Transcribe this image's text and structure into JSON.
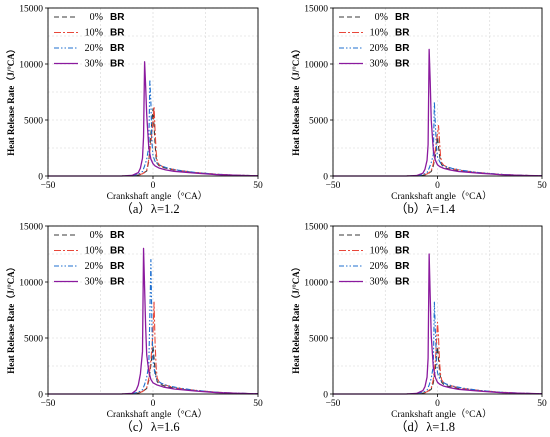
{
  "chart_data": [
    {
      "type": "line",
      "caption": "（a）λ=1.2",
      "xlabel": "Crankshaft angle（°CA）",
      "ylabel": "Heat Release Rate（J/°CA）",
      "xlim": [
        -50,
        50
      ],
      "ylim": [
        0,
        15000
      ],
      "xticks": [
        "−50",
        "0",
        "50"
      ],
      "yticks": [
        "0",
        "5000",
        "10000",
        "15000"
      ],
      "grid": true,
      "legend_position": "top-left",
      "series": [
        {
          "name": "0%",
          "name_suffix": "BR",
          "color": "#3a3a3a",
          "dash": "dash",
          "x": [
            -50,
            -15,
            -10,
            -7,
            -5,
            -3,
            -2,
            -1,
            0,
            0.5,
            1,
            1.5,
            2,
            3,
            5,
            8,
            12,
            20,
            30,
            40,
            50
          ],
          "y": [
            0,
            0,
            20,
            80,
            180,
            450,
            1300,
            3800,
            6000,
            4500,
            2800,
            1600,
            1100,
            900,
            750,
            600,
            480,
            300,
            150,
            60,
            20
          ]
        },
        {
          "name": "10%",
          "name_suffix": "BR",
          "color": "#e8473a",
          "dash": "dashdot",
          "x": [
            -50,
            -15,
            -10,
            -7,
            -5,
            -3,
            -2,
            -1,
            0,
            0.5,
            1,
            1.5,
            2,
            3,
            5,
            8,
            12,
            20,
            30,
            40,
            50
          ],
          "y": [
            0,
            0,
            30,
            100,
            200,
            500,
            1500,
            3000,
            4800,
            6200,
            4000,
            2200,
            1300,
            1000,
            800,
            650,
            500,
            320,
            160,
            70,
            20
          ]
        },
        {
          "name": "20%",
          "name_suffix": "BR",
          "color": "#1f6fcf",
          "dash": "dashdotdot",
          "x": [
            -50,
            -15,
            -10,
            -7,
            -5,
            -4,
            -3,
            -2,
            -1.5,
            -1,
            -0.5,
            0,
            1,
            2,
            4,
            7,
            12,
            20,
            30,
            40,
            50
          ],
          "y": [
            0,
            0,
            40,
            150,
            400,
            900,
            1500,
            2600,
            8600,
            6500,
            3000,
            1800,
            1300,
            1100,
            900,
            700,
            520,
            320,
            160,
            70,
            20
          ]
        },
        {
          "name": "30%",
          "name_suffix": "BR",
          "color": "#8b1a9e",
          "dash": "solid",
          "x": [
            -50,
            -15,
            -10,
            -7,
            -6,
            -5,
            -4.5,
            -4,
            -3.5,
            -3,
            -2,
            -1,
            0,
            1,
            3,
            6,
            10,
            20,
            30,
            40,
            50
          ],
          "y": [
            0,
            0,
            50,
            300,
            700,
            1600,
            3500,
            10200,
            8000,
            5500,
            2500,
            1500,
            1100,
            900,
            700,
            550,
            420,
            260,
            130,
            60,
            20
          ]
        }
      ]
    },
    {
      "type": "line",
      "caption": "（b）λ=1.4",
      "xlabel": "Crankshaft angle（°CA）",
      "ylabel": "Heat Release Rate（J/°CA）",
      "xlim": [
        -50,
        50
      ],
      "ylim": [
        0,
        15000
      ],
      "xticks": [
        "−50",
        "0",
        "50"
      ],
      "yticks": [
        "0",
        "5000",
        "10000",
        "15000"
      ],
      "grid": true,
      "legend_position": "top-left",
      "series": [
        {
          "name": "0%",
          "name_suffix": "BR",
          "color": "#3a3a3a",
          "dash": "dash",
          "x": [
            -50,
            -15,
            -10,
            -7,
            -5,
            -3,
            -2,
            -1,
            0,
            0.5,
            1,
            1.5,
            2,
            3,
            5,
            8,
            12,
            20,
            30,
            40,
            50
          ],
          "y": [
            0,
            0,
            20,
            60,
            150,
            400,
            900,
            1800,
            3500,
            2600,
            1800,
            1300,
            1000,
            800,
            650,
            520,
            420,
            280,
            140,
            60,
            20
          ]
        },
        {
          "name": "10%",
          "name_suffix": "BR",
          "color": "#e8473a",
          "dash": "dashdot",
          "x": [
            -50,
            -15,
            -10,
            -7,
            -5,
            -3,
            -2,
            -1,
            0,
            0.5,
            1,
            1.5,
            2,
            3,
            5,
            8,
            12,
            20,
            30,
            40,
            50
          ],
          "y": [
            0,
            0,
            25,
            90,
            180,
            450,
            1100,
            2400,
            3800,
            4500,
            3000,
            1700,
            1200,
            950,
            780,
            620,
            480,
            300,
            150,
            60,
            20
          ]
        },
        {
          "name": "20%",
          "name_suffix": "BR",
          "color": "#1f6fcf",
          "dash": "dashdotdot",
          "x": [
            -50,
            -15,
            -10,
            -7,
            -5,
            -4,
            -3,
            -2,
            -1.5,
            -1,
            -0.5,
            0,
            1,
            2,
            4,
            7,
            12,
            20,
            30,
            40,
            50
          ],
          "y": [
            0,
            0,
            30,
            120,
            300,
            700,
            1200,
            1900,
            6600,
            4500,
            2600,
            1700,
            1300,
            1000,
            850,
            680,
            500,
            300,
            150,
            60,
            20
          ]
        },
        {
          "name": "30%",
          "name_suffix": "BR",
          "color": "#8b1a9e",
          "dash": "solid",
          "x": [
            -50,
            -15,
            -10,
            -7,
            -6,
            -5,
            -4.5,
            -4,
            -3.5,
            -3,
            -2,
            -1,
            0,
            1,
            3,
            6,
            10,
            20,
            30,
            40,
            50
          ],
          "y": [
            0,
            0,
            40,
            250,
            600,
            1400,
            2800,
            11300,
            8500,
            5000,
            2300,
            1400,
            1000,
            850,
            680,
            540,
            400,
            250,
            120,
            50,
            20
          ]
        }
      ]
    },
    {
      "type": "line",
      "caption": "（c）λ=1.6",
      "xlabel": "Crankshaft angle（°CA）",
      "ylabel": "Heat Release Rate（J/°CA）",
      "xlim": [
        -50,
        50
      ],
      "ylim": [
        0,
        15000
      ],
      "xticks": [
        "−50",
        "0",
        "50"
      ],
      "yticks": [
        "0",
        "5000",
        "10000",
        "15000"
      ],
      "grid": true,
      "legend_position": "top-left",
      "series": [
        {
          "name": "0%",
          "name_suffix": "BR",
          "color": "#3a3a3a",
          "dash": "dash",
          "x": [
            -50,
            -15,
            -10,
            -7,
            -5,
            -3,
            -2,
            -1,
            0,
            0.5,
            1,
            1.5,
            2,
            3,
            5,
            8,
            12,
            20,
            30,
            40,
            50
          ],
          "y": [
            0,
            0,
            20,
            80,
            200,
            500,
            1200,
            2600,
            4300,
            3200,
            2100,
            1500,
            1100,
            900,
            750,
            600,
            460,
            300,
            150,
            60,
            20
          ]
        },
        {
          "name": "10%",
          "name_suffix": "BR",
          "color": "#e8473a",
          "dash": "dashdot",
          "x": [
            -50,
            -15,
            -10,
            -7,
            -5,
            -3,
            -2,
            -1,
            0,
            0.5,
            1,
            1.5,
            2,
            3,
            5,
            8,
            12,
            20,
            30,
            40,
            50
          ],
          "y": [
            0,
            0,
            30,
            100,
            220,
            550,
            1400,
            3000,
            5500,
            8200,
            4500,
            2400,
            1400,
            1050,
            850,
            680,
            520,
            330,
            160,
            70,
            20
          ]
        },
        {
          "name": "20%",
          "name_suffix": "BR",
          "color": "#1f6fcf",
          "dash": "dashdotdot",
          "x": [
            -50,
            -15,
            -10,
            -7,
            -5,
            -4,
            -3,
            -2,
            -1.5,
            -1,
            -0.5,
            0,
            1,
            2,
            4,
            7,
            12,
            20,
            30,
            40,
            50
          ],
          "y": [
            0,
            0,
            40,
            150,
            380,
            850,
            1500,
            2600,
            7000,
            12000,
            6000,
            3000,
            1700,
            1200,
            950,
            750,
            550,
            330,
            160,
            70,
            20
          ]
        },
        {
          "name": "30%",
          "name_suffix": "BR",
          "color": "#8b1a9e",
          "dash": "solid",
          "x": [
            -50,
            -15,
            -10,
            -8,
            -7,
            -6,
            -5,
            -4.5,
            -4,
            -3.5,
            -3,
            -2,
            -1,
            0,
            2,
            5,
            10,
            20,
            30,
            40,
            50
          ],
          "y": [
            0,
            0,
            50,
            350,
            800,
            1800,
            3800,
            13000,
            9500,
            6000,
            3500,
            2000,
            1300,
            1000,
            800,
            620,
            450,
            270,
            130,
            60,
            20
          ]
        }
      ]
    },
    {
      "type": "line",
      "caption": "（d）λ=1.8",
      "xlabel": "Crankshaft angle（°CA）",
      "ylabel": "Heat Release Rate（J/°CA）",
      "xlim": [
        -50,
        50
      ],
      "ylim": [
        0,
        15000
      ],
      "xticks": [
        "−50",
        "0",
        "50"
      ],
      "yticks": [
        "0",
        "5000",
        "10000",
        "15000"
      ],
      "grid": true,
      "legend_position": "top-left",
      "series": [
        {
          "name": "0%",
          "name_suffix": "BR",
          "color": "#3a3a3a",
          "dash": "dash",
          "x": [
            -50,
            -15,
            -10,
            -7,
            -5,
            -3,
            -2,
            -1,
            0,
            0.5,
            1,
            1.5,
            2,
            3,
            5,
            8,
            12,
            20,
            30,
            40,
            50
          ],
          "y": [
            0,
            0,
            20,
            70,
            170,
            420,
            1000,
            2300,
            4200,
            3100,
            2000,
            1400,
            1050,
            850,
            700,
            560,
            440,
            290,
            140,
            60,
            20
          ]
        },
        {
          "name": "10%",
          "name_suffix": "BR",
          "color": "#e8473a",
          "dash": "dashdot",
          "x": [
            -50,
            -15,
            -10,
            -7,
            -5,
            -3,
            -2,
            -1,
            0,
            0.5,
            1,
            1.5,
            2,
            3,
            5,
            8,
            12,
            20,
            30,
            40,
            50
          ],
          "y": [
            0,
            0,
            30,
            100,
            200,
            500,
            1300,
            3000,
            6400,
            5000,
            2800,
            1700,
            1250,
            1000,
            820,
            660,
            500,
            320,
            160,
            70,
            20
          ]
        },
        {
          "name": "20%",
          "name_suffix": "BR",
          "color": "#1f6fcf",
          "dash": "dashdotdot",
          "x": [
            -50,
            -15,
            -10,
            -7,
            -5,
            -4,
            -3,
            -2,
            -1.5,
            -1,
            -0.5,
            0,
            1,
            2,
            4,
            7,
            12,
            20,
            30,
            40,
            50
          ],
          "y": [
            0,
            0,
            40,
            140,
            350,
            800,
            1400,
            2500,
            8200,
            5500,
            3000,
            1900,
            1400,
            1100,
            900,
            720,
            530,
            320,
            160,
            70,
            20
          ]
        },
        {
          "name": "30%",
          "name_suffix": "BR",
          "color": "#8b1a9e",
          "dash": "solid",
          "x": [
            -50,
            -15,
            -10,
            -7,
            -6,
            -5,
            -4.5,
            -4,
            -3.5,
            -3,
            -2,
            -1,
            0,
            1,
            3,
            6,
            10,
            20,
            30,
            40,
            50
          ],
          "y": [
            0,
            0,
            50,
            300,
            650,
            1500,
            3200,
            12500,
            8800,
            5200,
            2400,
            1450,
            1050,
            880,
            700,
            560,
            420,
            260,
            130,
            60,
            20
          ]
        }
      ]
    }
  ]
}
